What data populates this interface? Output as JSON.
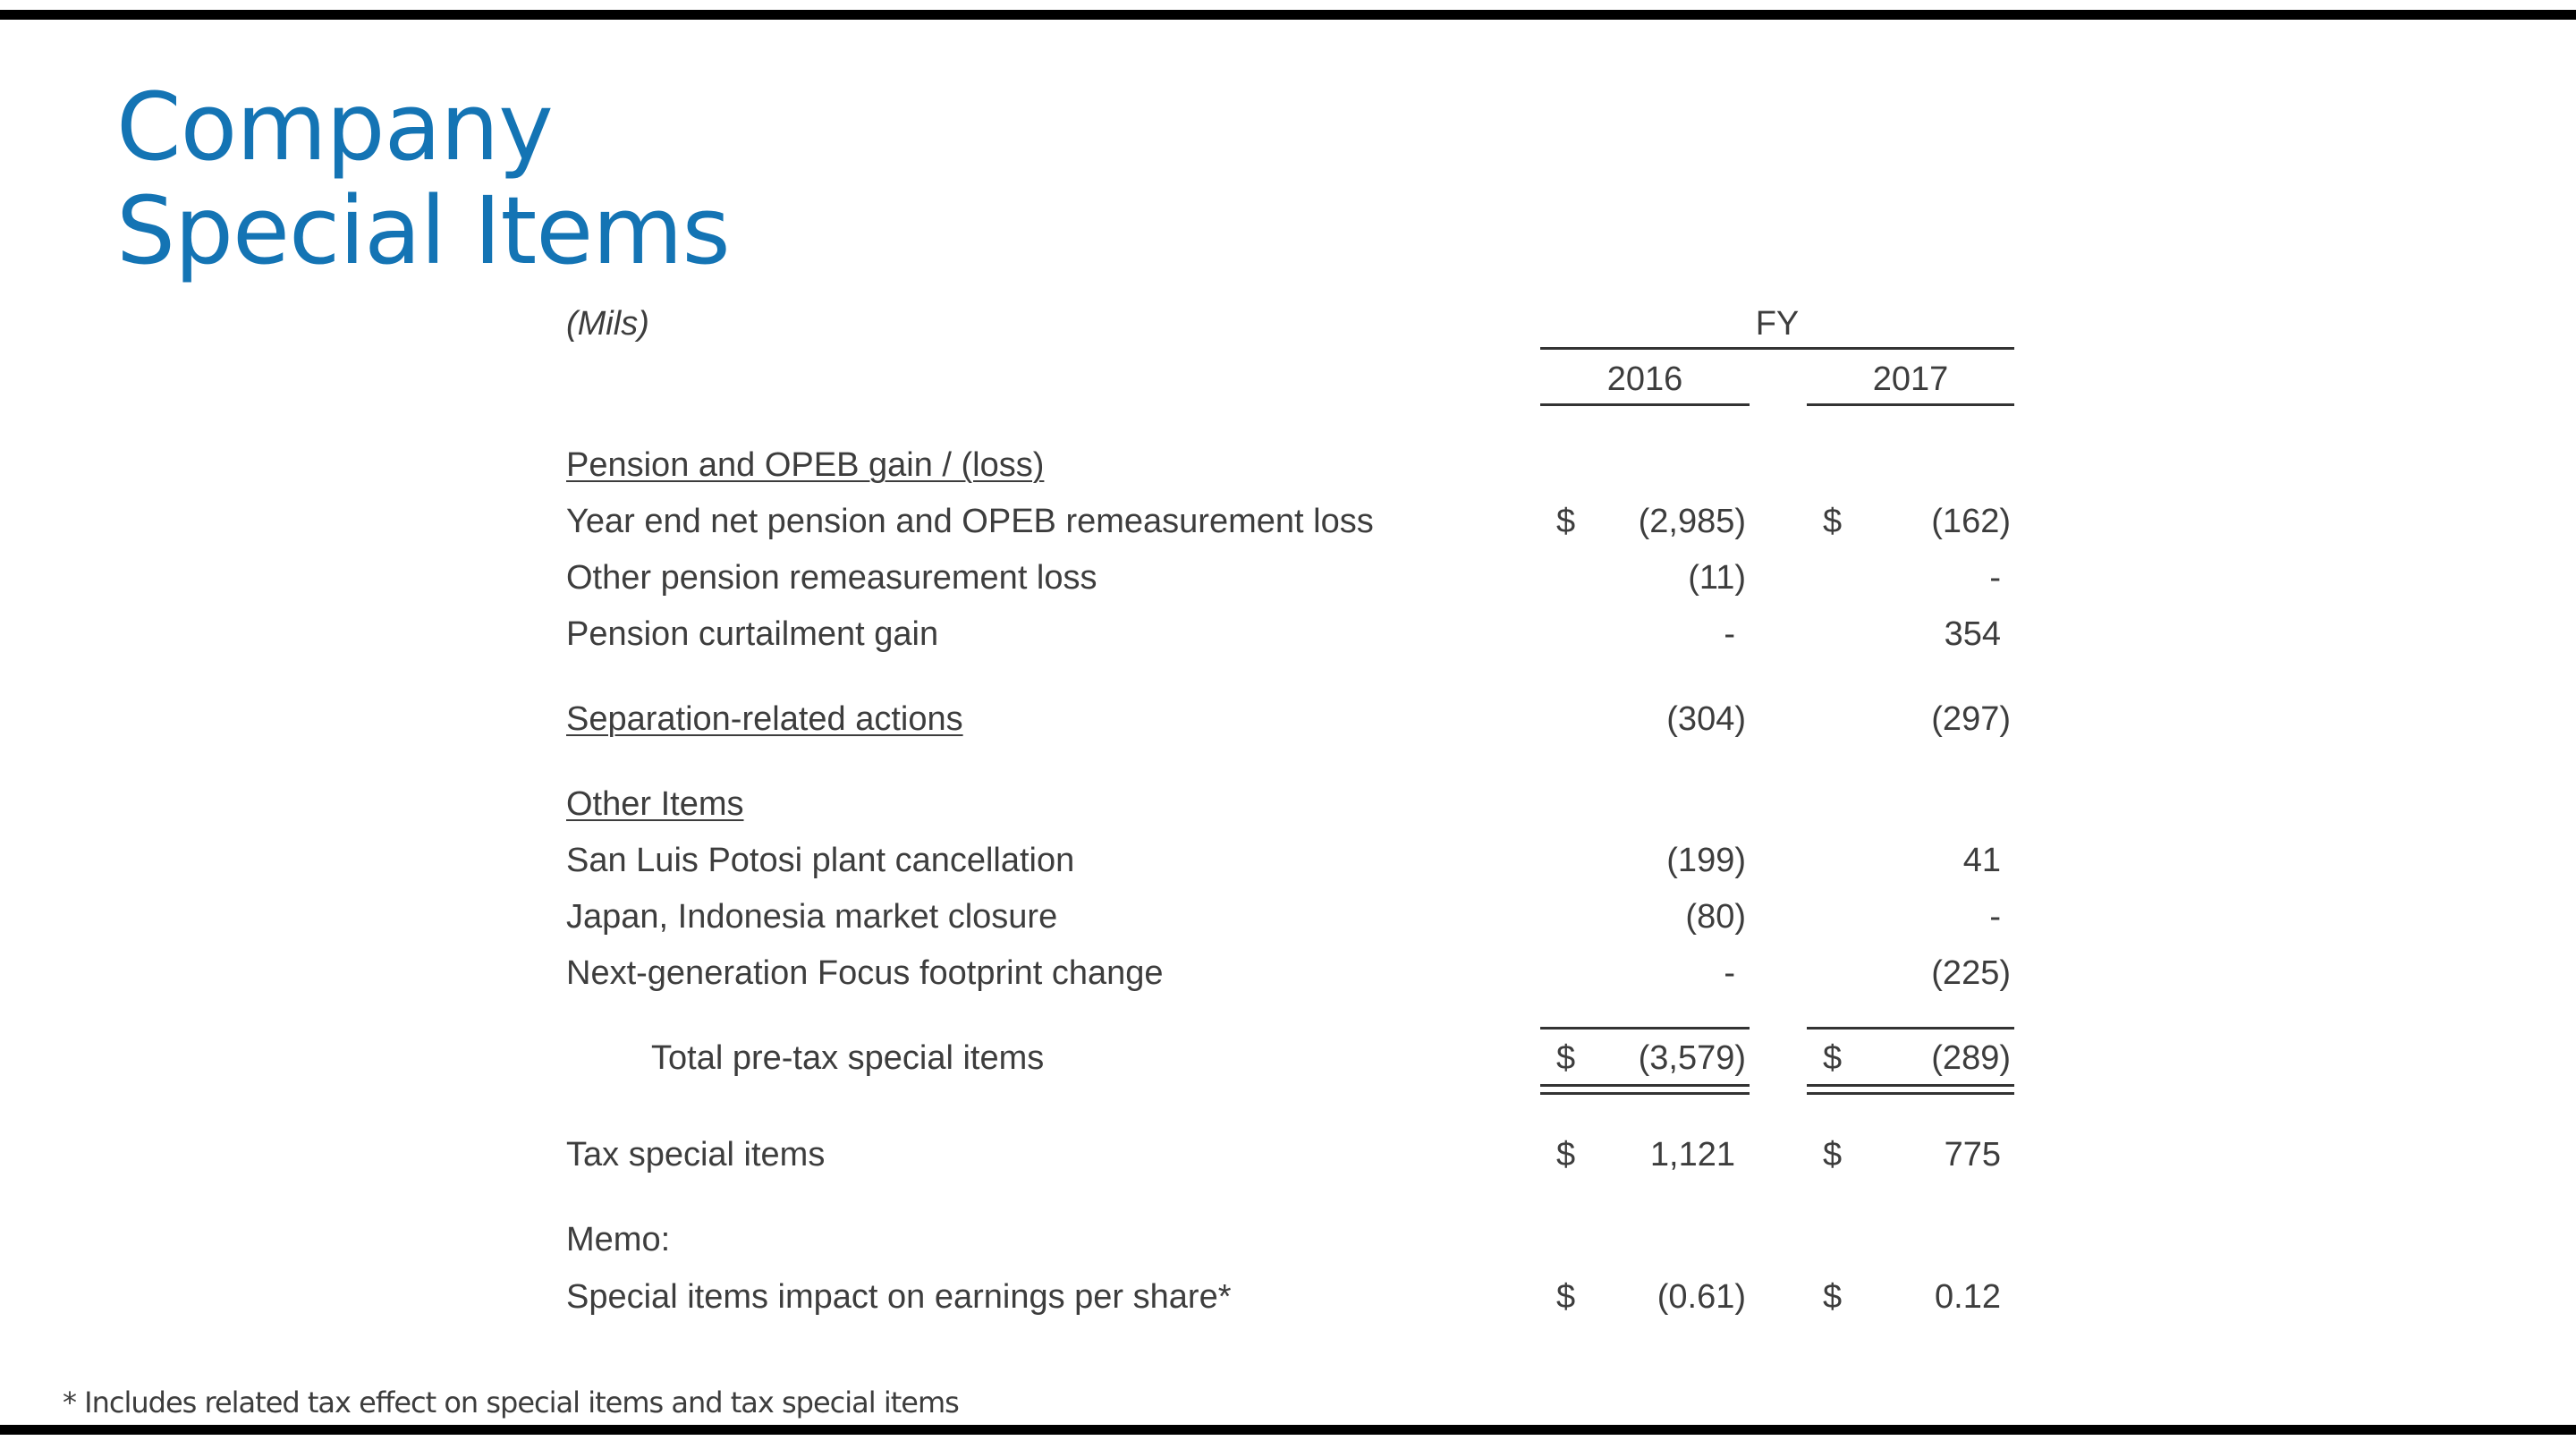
{
  "title": {
    "line1": "Company",
    "line2": "Special Items"
  },
  "table": {
    "units": "(Mils)",
    "period_header": "FY",
    "columns": [
      "2016",
      "2017"
    ],
    "sections": {
      "pension_header": "Pension and OPEB gain / (loss)",
      "other_header": "Other Items",
      "memo_header": "Memo:"
    },
    "rows": {
      "year_end": {
        "label": "Year end net pension and OPEB remeasurement loss",
        "c1_cur": "$",
        "c1": "(2,985)",
        "c2_cur": "$",
        "c2": "(162)"
      },
      "other_pension": {
        "label": "Other pension remeasurement loss",
        "c1": "(11)",
        "c2": "-"
      },
      "curtailment": {
        "label": "Pension curtailment gain",
        "c1": "-",
        "c2": "354"
      },
      "separation": {
        "label": "Separation-related actions",
        "c1": "(304)",
        "c2": "(297)"
      },
      "san_luis": {
        "label": "San Luis Potosi plant cancellation",
        "c1": "(199)",
        "c2": "41"
      },
      "japan": {
        "label": "Japan, Indonesia market closure",
        "c1": "(80)",
        "c2": "-"
      },
      "focus": {
        "label": "Next-generation Focus footprint change",
        "c1": "-",
        "c2": "(225)"
      },
      "total": {
        "label": "Total pre-tax special items",
        "c1_cur": "$",
        "c1": "(3,579)",
        "c2_cur": "$",
        "c2": "(289)"
      },
      "tax": {
        "label": "Tax special items",
        "c1_cur": "$",
        "c1": "1,121",
        "c2_cur": "$",
        "c2": "775"
      },
      "eps": {
        "label": "Special items impact on earnings per share*",
        "c1_cur": "$",
        "c1": "(0.61)",
        "c2_cur": "$",
        "c2": "0.12"
      }
    }
  },
  "footnote": "* Includes related tax effect on special items and tax special items"
}
